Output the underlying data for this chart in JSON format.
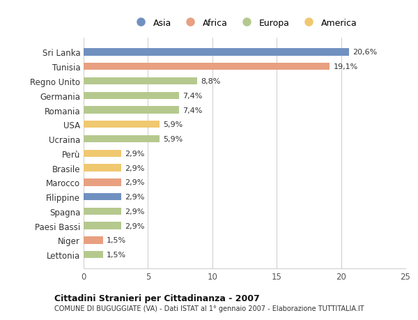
{
  "title": "Cittadini Stranieri per Cittadinanza - 2007",
  "subtitle": "COMUNE DI BUGUGGIATE (VA) - Dati ISTAT al 1° gennaio 2007 - Elaborazione TUTTITALIA.IT",
  "categories": [
    "Lettonia",
    "Niger",
    "Paesi Bassi",
    "Spagna",
    "Filippine",
    "Marocco",
    "Brasile",
    "Perù",
    "Ucraina",
    "USA",
    "Romania",
    "Germania",
    "Regno Unito",
    "Tunisia",
    "Sri Lanka"
  ],
  "values": [
    1.5,
    1.5,
    2.9,
    2.9,
    2.9,
    2.9,
    2.9,
    2.9,
    5.9,
    5.9,
    7.4,
    7.4,
    8.8,
    19.1,
    20.6
  ],
  "colors": [
    "#b5c98e",
    "#e8a080",
    "#b5c98e",
    "#b5c98e",
    "#7090c0",
    "#e8a080",
    "#f0c870",
    "#f0c870",
    "#b5c98e",
    "#f0c870",
    "#b5c98e",
    "#b5c98e",
    "#b5c98e",
    "#e8a080",
    "#7090c0"
  ],
  "labels": [
    "1,5%",
    "1,5%",
    "2,9%",
    "2,9%",
    "2,9%",
    "2,9%",
    "2,9%",
    "2,9%",
    "5,9%",
    "5,9%",
    "7,4%",
    "7,4%",
    "8,8%",
    "19,1%",
    "20,6%"
  ],
  "legend": [
    {
      "label": "Asia",
      "color": "#7090c0"
    },
    {
      "label": "Africa",
      "color": "#e8a080"
    },
    {
      "label": "Europa",
      "color": "#b5c98e"
    },
    {
      "label": "America",
      "color": "#f0c870"
    }
  ],
  "xlim": [
    0,
    25
  ],
  "xticks": [
    0,
    5,
    10,
    15,
    20,
    25
  ],
  "background_color": "#ffffff",
  "grid_color": "#cccccc",
  "bar_height": 0.5
}
